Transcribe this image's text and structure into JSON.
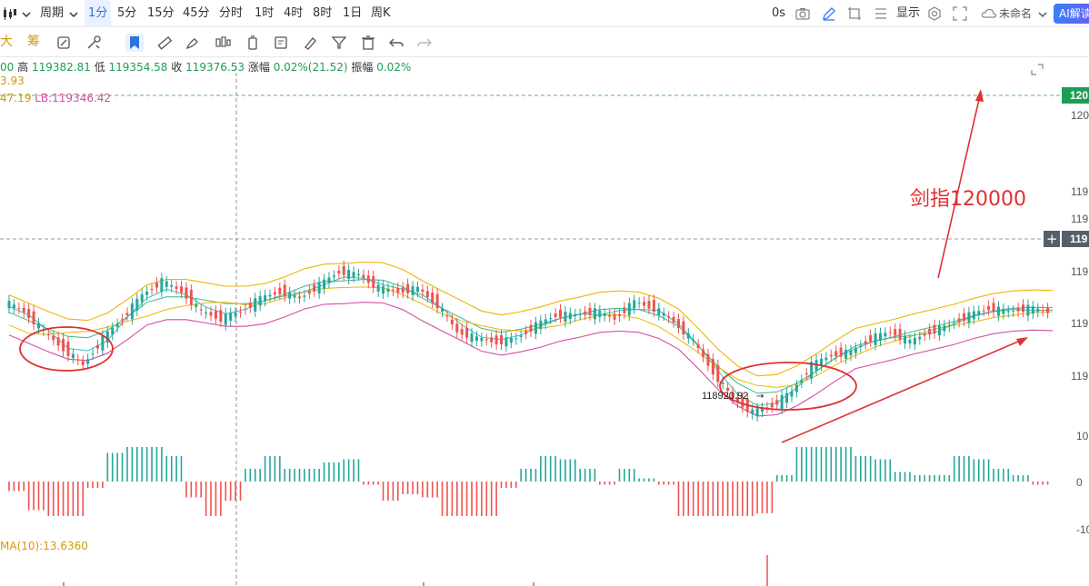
{
  "topbar": {
    "period_label": "周期",
    "intervals": [
      "1分",
      "5分",
      "15分",
      "45分",
      "分时",
      "1时",
      "4时",
      "8时",
      "1日",
      "周K"
    ],
    "active_interval": "1分",
    "countdown": "0s",
    "display_label": "显示",
    "layout_name": "未命名",
    "ai_label": "AI解读"
  },
  "toolbar": {
    "left_chars": [
      "大",
      "筹"
    ],
    "tools": [
      "flag-icon",
      "ruler-icon",
      "brush-icon",
      "candle-icon",
      "timer-icon",
      "note-icon",
      "eraser-pen-icon",
      "filter-icon",
      "trash-icon",
      "undo-icon",
      "redo-icon"
    ]
  },
  "info": {
    "open_partial": "00",
    "high_label": "高",
    "high": "119382.81",
    "low_label": "低",
    "low": "119354.58",
    "close_label": "收",
    "close": "119376.53",
    "change_label": "涨幅",
    "change": "0.02%(21.52)",
    "amp_label": "振幅",
    "amp": "0.02%",
    "line2": "3.93",
    "line3_a": "47.19",
    "line3_b": "LB:119346.42"
  },
  "axis": {
    "price_ticks": [
      "120",
      "119",
      "119",
      "119",
      "119",
      "119"
    ],
    "current_price_tag": "120",
    "crosshair_price_tag": "119",
    "macd_ticks": [
      "10",
      "0",
      "-10"
    ]
  },
  "annotations": {
    "target_text": "剑指120000",
    "low_marker": "118920.92"
  },
  "macd": {
    "label": "MA(10):13.6360"
  },
  "colors": {
    "up": "#26a69a",
    "down": "#ef5350",
    "ma_gold": "#f0b400",
    "ma_cyan": "#2ec4c4",
    "boll_pink": "#d14fa3",
    "annotation_red": "#e03030",
    "tag_green": "#1f9d55",
    "tag_gray": "#555f6b"
  },
  "chart_data": {
    "type": "line",
    "title": "",
    "series": [
      {
        "values": [
          119290,
          119260,
          119200,
          119150,
          119100,
          119180,
          119240,
          119310,
          119350,
          119320,
          119260,
          119240,
          119260,
          119300,
          119320,
          119300,
          119340,
          119380,
          119370,
          119330,
          119320,
          119330,
          119280,
          119200,
          119180,
          119170,
          119180,
          119220,
          119250,
          119250,
          119260,
          119240,
          119290,
          119270,
          119230,
          119170,
          119080,
          119000,
          118960,
          118980,
          119020,
          119100,
          119130,
          119140,
          119180,
          119200,
          119170,
          119200,
          119220,
          119250,
          119270,
          119260,
          119270,
          119260
        ]
      }
    ],
    "ylim": [
      118880,
      120020
    ]
  }
}
